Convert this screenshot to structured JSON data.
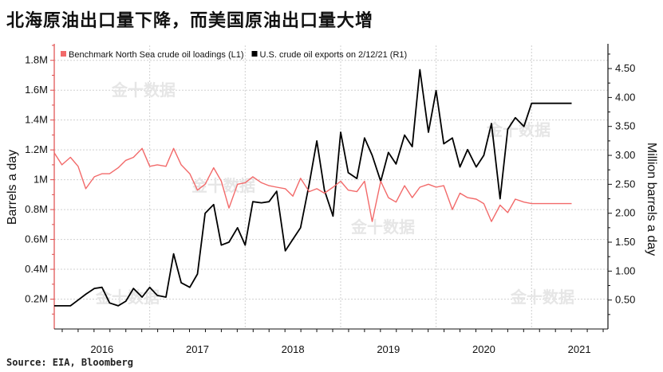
{
  "headline": "北海原油出口量下降，而美国原油出口量大增",
  "source": "Source: EIA, Bloomberg",
  "watermark": "金十数据",
  "chart_data": {
    "type": "line",
    "ylabel_left": "Barrels a day",
    "ylabel_right": "Million barrels a day",
    "ylim_left": [
      0,
      1.9
    ],
    "ylim_right": [
      0,
      4.9
    ],
    "left_ticks": [
      {
        "v": 0.2,
        "label": "0.2M"
      },
      {
        "v": 0.4,
        "label": "0.4M"
      },
      {
        "v": 0.6,
        "label": "0.6M"
      },
      {
        "v": 0.8,
        "label": "0.8M"
      },
      {
        "v": 1.0,
        "label": "1M"
      },
      {
        "v": 1.2,
        "label": "1.2M"
      },
      {
        "v": 1.4,
        "label": "1.4M"
      },
      {
        "v": 1.6,
        "label": "1.6M"
      },
      {
        "v": 1.8,
        "label": "1.8M"
      }
    ],
    "right_ticks": [
      {
        "v": 0.5,
        "label": "0.50"
      },
      {
        "v": 1.0,
        "label": "1.00"
      },
      {
        "v": 1.5,
        "label": "1.50"
      },
      {
        "v": 2.0,
        "label": "2.00"
      },
      {
        "v": 2.5,
        "label": "2.50"
      },
      {
        "v": 3.0,
        "label": "3.00"
      },
      {
        "v": 3.5,
        "label": "3.50"
      },
      {
        "v": 4.0,
        "label": "4.00"
      },
      {
        "v": 4.5,
        "label": "4.50"
      }
    ],
    "xlim": [
      2015.5,
      2021.3
    ],
    "x_ticks": [
      {
        "v": 2016.0,
        "label": "2016"
      },
      {
        "v": 2017.0,
        "label": "2017"
      },
      {
        "v": 2018.0,
        "label": "2018"
      },
      {
        "v": 2019.0,
        "label": "2019"
      },
      {
        "v": 2020.0,
        "label": "2020"
      },
      {
        "v": 2021.0,
        "label": "2021"
      }
    ],
    "year_dividers": [
      2016.5,
      2017.5,
      2018.5,
      2019.5,
      2020.5
    ],
    "grid": true,
    "legend": "top-left",
    "series": [
      {
        "name": "U.S. crude oil exports on 2/12/21 (R1)",
        "axis": "right",
        "color": "#000000",
        "x": [
          2015.5,
          2015.58,
          2015.67,
          2015.75,
          2015.83,
          2015.92,
          2016.0,
          2016.08,
          2016.17,
          2016.25,
          2016.33,
          2016.42,
          2016.5,
          2016.58,
          2016.67,
          2016.75,
          2016.83,
          2016.92,
          2017.0,
          2017.08,
          2017.17,
          2017.25,
          2017.33,
          2017.42,
          2017.5,
          2017.58,
          2017.67,
          2017.75,
          2017.83,
          2017.92,
          2018.0,
          2018.08,
          2018.17,
          2018.25,
          2018.33,
          2018.42,
          2018.5,
          2018.58,
          2018.67,
          2018.75,
          2018.83,
          2018.92,
          2019.0,
          2019.08,
          2019.17,
          2019.25,
          2019.33,
          2019.42,
          2019.5,
          2019.58,
          2019.67,
          2019.75,
          2019.83,
          2019.92,
          2020.0,
          2020.08,
          2020.17,
          2020.25,
          2020.33,
          2020.42,
          2020.5,
          2020.58,
          2020.67,
          2020.75,
          2020.83,
          2020.92
        ],
        "y": [
          0.4,
          0.4,
          0.4,
          0.5,
          0.6,
          0.7,
          0.72,
          0.45,
          0.4,
          0.48,
          0.7,
          0.55,
          0.72,
          0.58,
          0.55,
          1.3,
          0.8,
          0.72,
          0.95,
          2.0,
          2.15,
          1.45,
          1.5,
          1.75,
          1.45,
          2.2,
          2.18,
          2.2,
          2.38,
          1.35,
          1.55,
          1.75,
          2.5,
          3.25,
          2.4,
          1.95,
          3.4,
          2.7,
          2.6,
          3.3,
          3.0,
          2.55,
          3.05,
          2.85,
          3.35,
          3.15,
          4.48,
          3.4,
          4.12,
          3.2,
          3.3,
          2.8,
          3.1,
          2.8,
          3.0,
          3.55,
          2.25,
          3.45,
          3.65,
          3.5,
          3.9,
          3.9,
          3.9,
          3.9,
          3.9,
          3.9
        ]
      },
      {
        "name": "Benchmark North Sea crude oil loadings (L1)",
        "axis": "left",
        "color": "#f26a6a",
        "x": [
          2015.5,
          2015.58,
          2015.67,
          2015.75,
          2015.83,
          2015.92,
          2016.0,
          2016.08,
          2016.17,
          2016.25,
          2016.33,
          2016.42,
          2016.5,
          2016.58,
          2016.67,
          2016.75,
          2016.83,
          2016.92,
          2017.0,
          2017.08,
          2017.17,
          2017.25,
          2017.33,
          2017.42,
          2017.5,
          2017.58,
          2017.67,
          2017.75,
          2017.83,
          2017.92,
          2018.0,
          2018.08,
          2018.17,
          2018.25,
          2018.33,
          2018.42,
          2018.5,
          2018.58,
          2018.67,
          2018.75,
          2018.83,
          2018.92,
          2019.0,
          2019.08,
          2019.17,
          2019.25,
          2019.33,
          2019.42,
          2019.5,
          2019.58,
          2019.67,
          2019.75,
          2019.83,
          2019.92,
          2020.0,
          2020.08,
          2020.17,
          2020.25,
          2020.33,
          2020.42,
          2020.5,
          2020.58,
          2020.67,
          2020.75,
          2020.83,
          2020.92
        ],
        "y": [
          1.18,
          1.1,
          1.15,
          1.09,
          0.94,
          1.02,
          1.04,
          1.04,
          1.08,
          1.13,
          1.15,
          1.21,
          1.09,
          1.1,
          1.09,
          1.21,
          1.1,
          1.04,
          0.93,
          0.97,
          1.08,
          0.99,
          0.81,
          0.97,
          0.98,
          1.02,
          0.98,
          0.96,
          0.95,
          0.94,
          0.89,
          1.01,
          0.92,
          0.94,
          0.91,
          0.95,
          0.99,
          0.93,
          0.92,
          0.99,
          0.72,
          0.99,
          0.88,
          0.85,
          0.96,
          0.88,
          0.95,
          0.97,
          0.95,
          0.96,
          0.8,
          0.91,
          0.88,
          0.87,
          0.84,
          0.72,
          0.83,
          0.78,
          0.87,
          0.85,
          0.84,
          0.84,
          0.84,
          0.84,
          0.84,
          0.84
        ]
      }
    ]
  }
}
